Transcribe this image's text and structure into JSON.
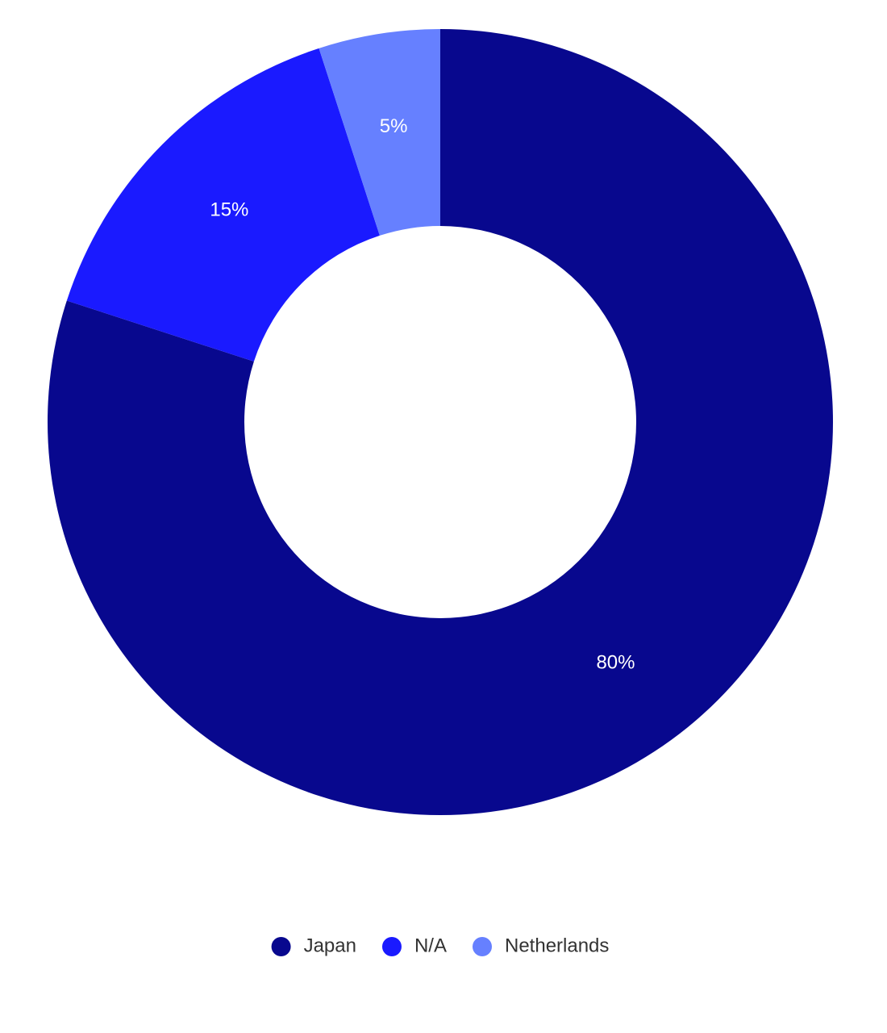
{
  "chart_data": {
    "type": "donut",
    "categories": [
      "Japan",
      "N/A",
      "Netherlands"
    ],
    "values": [
      80,
      15,
      5
    ],
    "value_labels": [
      "80%",
      "15%",
      "5%"
    ],
    "colors": [
      "#08088e",
      "#1a1aff",
      "#6680ff"
    ],
    "legend": "bottom"
  }
}
